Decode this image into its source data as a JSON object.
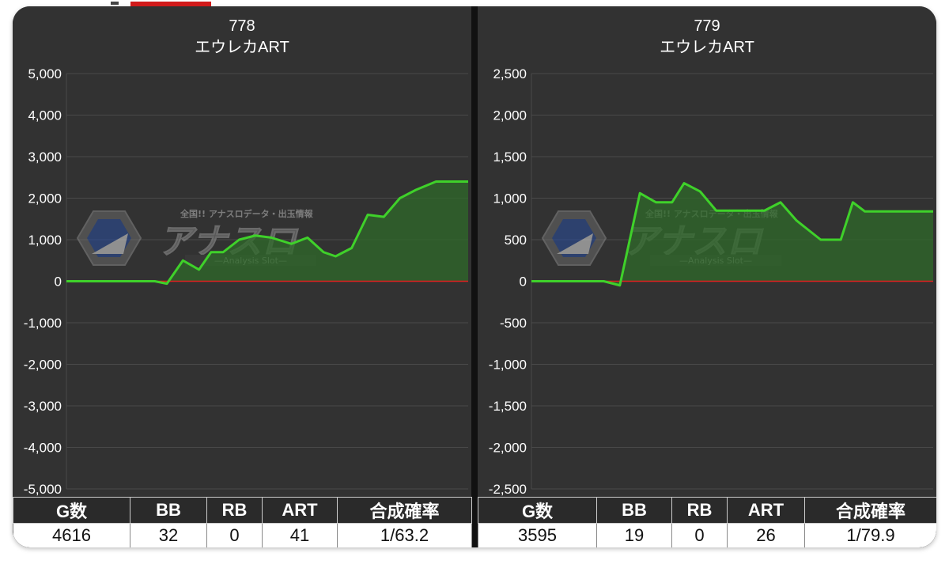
{
  "colors": {
    "panel_bg": "#323232",
    "grid": "#4a4a4a",
    "zero_line": "#e02020",
    "line": "#3fd12a",
    "fill": "#2f6a2a",
    "header_bg": "#2a2a2a",
    "cell_bg": "#ffffff"
  },
  "watermark": {
    "top_text": "全国!! アナスロデータ・出玉情報",
    "logo_text": "アナスロ",
    "sub_text": "—Analysis Slot—"
  },
  "panels": [
    {
      "number": "778",
      "name": "エウレカART",
      "stats_headers": [
        "G数",
        "BB",
        "RB",
        "ART",
        "合成確率"
      ],
      "stats_values": [
        "4616",
        "32",
        "0",
        "41",
        "1/63.2"
      ]
    },
    {
      "number": "779",
      "name": "エウレカART",
      "stats_headers": [
        "G数",
        "BB",
        "RB",
        "ART",
        "合成確率"
      ],
      "stats_values": [
        "3595",
        "19",
        "0",
        "26",
        "1/79.9"
      ]
    }
  ],
  "chart_data": [
    {
      "type": "area",
      "title": "778 エウレカART",
      "xlabel": "",
      "ylabel": "",
      "ylim": [
        -5000,
        5000
      ],
      "yticks": [
        5000,
        4000,
        3000,
        2000,
        1000,
        0,
        -1000,
        -2000,
        -3000,
        -4000,
        -5000
      ],
      "ytick_labels": [
        "5,000",
        "4,000",
        "3,000",
        "2,000",
        "1,000",
        "0",
        "-1,000",
        "-2,000",
        "-3,000",
        "-4,000",
        "-5,000"
      ],
      "grid": true,
      "baseline": 0,
      "x": [
        0,
        0.22,
        0.25,
        0.29,
        0.33,
        0.36,
        0.39,
        0.43,
        0.47,
        0.51,
        0.56,
        0.6,
        0.64,
        0.67,
        0.71,
        0.75,
        0.79,
        0.83,
        0.87,
        0.92,
        0.96,
        1.0
      ],
      "values": [
        0,
        0,
        -60,
        500,
        280,
        700,
        700,
        1000,
        1100,
        1050,
        900,
        1050,
        700,
        600,
        800,
        1600,
        1550,
        2000,
        2200,
        2400,
        2400,
        2400
      ]
    },
    {
      "type": "area",
      "title": "779 エウレカART",
      "xlabel": "",
      "ylabel": "",
      "ylim": [
        -2500,
        2500
      ],
      "yticks": [
        2500,
        2000,
        1500,
        1000,
        500,
        0,
        -500,
        -1000,
        -1500,
        -2000,
        -2500
      ],
      "ytick_labels": [
        "2,500",
        "2,000",
        "1,500",
        "1,000",
        "500",
        "0",
        "-500",
        "-1,000",
        "-1,500",
        "-2,000",
        "-2,500"
      ],
      "grid": true,
      "baseline": 0,
      "x": [
        0,
        0.18,
        0.22,
        0.27,
        0.31,
        0.35,
        0.38,
        0.42,
        0.46,
        0.49,
        0.53,
        0.58,
        0.62,
        0.66,
        0.72,
        0.77,
        0.8,
        0.83,
        0.87,
        1.0
      ],
      "values": [
        0,
        0,
        -50,
        1060,
        950,
        950,
        1180,
        1080,
        850,
        850,
        850,
        850,
        950,
        730,
        500,
        500,
        950,
        840,
        840,
        840
      ]
    }
  ]
}
